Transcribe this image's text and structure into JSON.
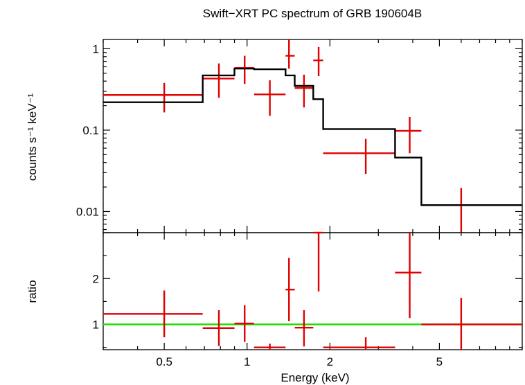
{
  "chart_data": {
    "type": "scatter",
    "title": "Swift−XRT PC spectrum of GRB 190604B",
    "xlabel": "Energy (keV)",
    "xscale": "log",
    "xlim": [
      0.3,
      10
    ],
    "xticks": [
      {
        "value": 0.5,
        "label": "0.5"
      },
      {
        "value": 1,
        "label": "1"
      },
      {
        "value": 2,
        "label": "2"
      },
      {
        "value": 5,
        "label": "5"
      }
    ],
    "colors": {
      "data": "#e00000",
      "model": "#000000",
      "unity": "#22dd00",
      "axes": "#000000"
    },
    "panels": [
      {
        "id": "spectrum",
        "ylabel": "counts s⁻¹ keV⁻¹",
        "yscale": "log",
        "ylim": [
          0.0055,
          1.3
        ],
        "yticks": [
          {
            "value": 1,
            "label": "1"
          },
          {
            "value": 0.1,
            "label": "0.1"
          },
          {
            "value": 0.01,
            "label": "0.01"
          }
        ],
        "series": [
          {
            "kind": "data",
            "points": [
              {
                "x": 0.5,
                "xlo": 0.3,
                "xhi": 0.69,
                "y": 0.27,
                "ylo": 0.165,
                "yhi": 0.38
              },
              {
                "x": 0.79,
                "xlo": 0.69,
                "xhi": 0.9,
                "y": 0.43,
                "ylo": 0.25,
                "yhi": 0.66
              },
              {
                "x": 0.98,
                "xlo": 0.9,
                "xhi": 1.06,
                "y": 0.58,
                "ylo": 0.37,
                "yhi": 0.82
              },
              {
                "x": 1.21,
                "xlo": 1.06,
                "xhi": 1.38,
                "y": 0.275,
                "ylo": 0.15,
                "yhi": 0.41
              },
              {
                "x": 1.42,
                "xlo": 1.38,
                "xhi": 1.49,
                "y": 0.82,
                "ylo": 0.57,
                "yhi": 1.3
              },
              {
                "x": 1.61,
                "xlo": 1.49,
                "xhi": 1.74,
                "y": 0.33,
                "ylo": 0.19,
                "yhi": 0.48
              },
              {
                "x": 1.82,
                "xlo": 1.74,
                "xhi": 1.89,
                "y": 0.72,
                "ylo": 0.46,
                "yhi": 1.05
              },
              {
                "x": 2.7,
                "xlo": 1.89,
                "xhi": 3.45,
                "y": 0.052,
                "ylo": 0.029,
                "yhi": 0.078
              },
              {
                "x": 3.9,
                "xlo": 3.45,
                "xhi": 4.3,
                "y": 0.098,
                "ylo": 0.052,
                "yhi": 0.145
              },
              {
                "x": 6.0,
                "xlo": 4.3,
                "xhi": 10,
                "y": 0.012,
                "ylo": 0.0055,
                "yhi": 0.0195
              }
            ]
          },
          {
            "kind": "model",
            "steps": [
              {
                "xlo": 0.3,
                "xhi": 0.69,
                "y": 0.22
              },
              {
                "xlo": 0.69,
                "xhi": 0.9,
                "y": 0.47
              },
              {
                "xlo": 0.9,
                "xhi": 1.06,
                "y": 0.57
              },
              {
                "xlo": 1.06,
                "xhi": 1.38,
                "y": 0.56
              },
              {
                "xlo": 1.38,
                "xhi": 1.49,
                "y": 0.47
              },
              {
                "xlo": 1.49,
                "xhi": 1.74,
                "y": 0.35
              },
              {
                "xlo": 1.74,
                "xhi": 1.89,
                "y": 0.24
              },
              {
                "xlo": 1.89,
                "xhi": 3.45,
                "y": 0.103
              },
              {
                "xlo": 3.45,
                "xhi": 4.3,
                "y": 0.046
              },
              {
                "xlo": 4.3,
                "xhi": 10,
                "y": 0.012
              }
            ]
          }
        ]
      },
      {
        "id": "ratio",
        "ylabel": "ratio",
        "yscale": "linear",
        "ylim": [
          0.45,
          3.0
        ],
        "yticks": [
          {
            "value": 1,
            "label": "1"
          },
          {
            "value": 2,
            "label": "2"
          }
        ],
        "reference_line": 1,
        "series": [
          {
            "kind": "data",
            "points": [
              {
                "x": 0.5,
                "xlo": 0.3,
                "xhi": 0.69,
                "y": 1.23,
                "ylo": 0.72,
                "yhi": 1.74
              },
              {
                "x": 0.79,
                "xlo": 0.69,
                "xhi": 0.9,
                "y": 0.92,
                "ylo": 0.53,
                "yhi": 1.31
              },
              {
                "x": 0.98,
                "xlo": 0.9,
                "xhi": 1.06,
                "y": 1.02,
                "ylo": 0.62,
                "yhi": 1.42
              },
              {
                "x": 1.21,
                "xlo": 1.06,
                "xhi": 1.38,
                "y": 0.5,
                "ylo": 0.45,
                "yhi": 0.58
              },
              {
                "x": 1.42,
                "xlo": 1.38,
                "xhi": 1.49,
                "y": 1.76,
                "ylo": 1.07,
                "yhi": 2.45
              },
              {
                "x": 1.61,
                "xlo": 1.49,
                "xhi": 1.74,
                "y": 0.93,
                "ylo": 0.52,
                "yhi": 1.31
              },
              {
                "x": 1.82,
                "xlo": 1.74,
                "xhi": 1.89,
                "y": 3.0,
                "ylo": 1.72,
                "yhi": 3.0
              },
              {
                "x": 2.7,
                "xlo": 1.89,
                "xhi": 3.45,
                "y": 0.5,
                "ylo": 0.45,
                "yhi": 0.72
              },
              {
                "x": 3.9,
                "xlo": 3.45,
                "xhi": 4.3,
                "y": 2.13,
                "ylo": 1.14,
                "yhi": 3.0
              },
              {
                "x": 6.0,
                "xlo": 4.3,
                "xhi": 10,
                "y": 1.0,
                "ylo": 0.45,
                "yhi": 1.58
              }
            ]
          }
        ]
      }
    ]
  }
}
